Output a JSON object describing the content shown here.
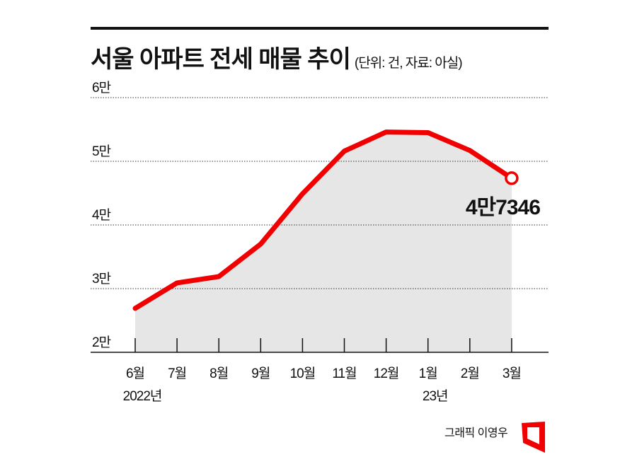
{
  "title": "서울 아파트 전세 매물 추이",
  "unit_note": "(단위: 건, 자료: 아실)",
  "credit": "그래픽 이영우",
  "colors": {
    "line": "#f00000",
    "area": "#e6e6e6",
    "text": "#111111"
  },
  "chart_data": {
    "type": "area",
    "title": "서울 아파트 전세 매물 추이",
    "categories": [
      "6월",
      "7월",
      "8월",
      "9월",
      "10월",
      "11월",
      "12월",
      "1월",
      "2월",
      "3월"
    ],
    "year_labels": [
      {
        "index": 0,
        "label": "2022년"
      },
      {
        "index": 7,
        "label": "23년"
      }
    ],
    "values": [
      26900,
      30900,
      31900,
      37000,
      44900,
      51600,
      54600,
      54500,
      51700,
      47346
    ],
    "ylim": [
      20000,
      60000
    ],
    "yticks": [
      {
        "value": 20000,
        "label": "2만"
      },
      {
        "value": 30000,
        "label": "3만"
      },
      {
        "value": 40000,
        "label": "4만"
      },
      {
        "value": 50000,
        "label": "5만"
      },
      {
        "value": 60000,
        "label": "6만"
      }
    ],
    "annotation": {
      "index": 9,
      "label": "4만7346"
    },
    "grid": true
  }
}
